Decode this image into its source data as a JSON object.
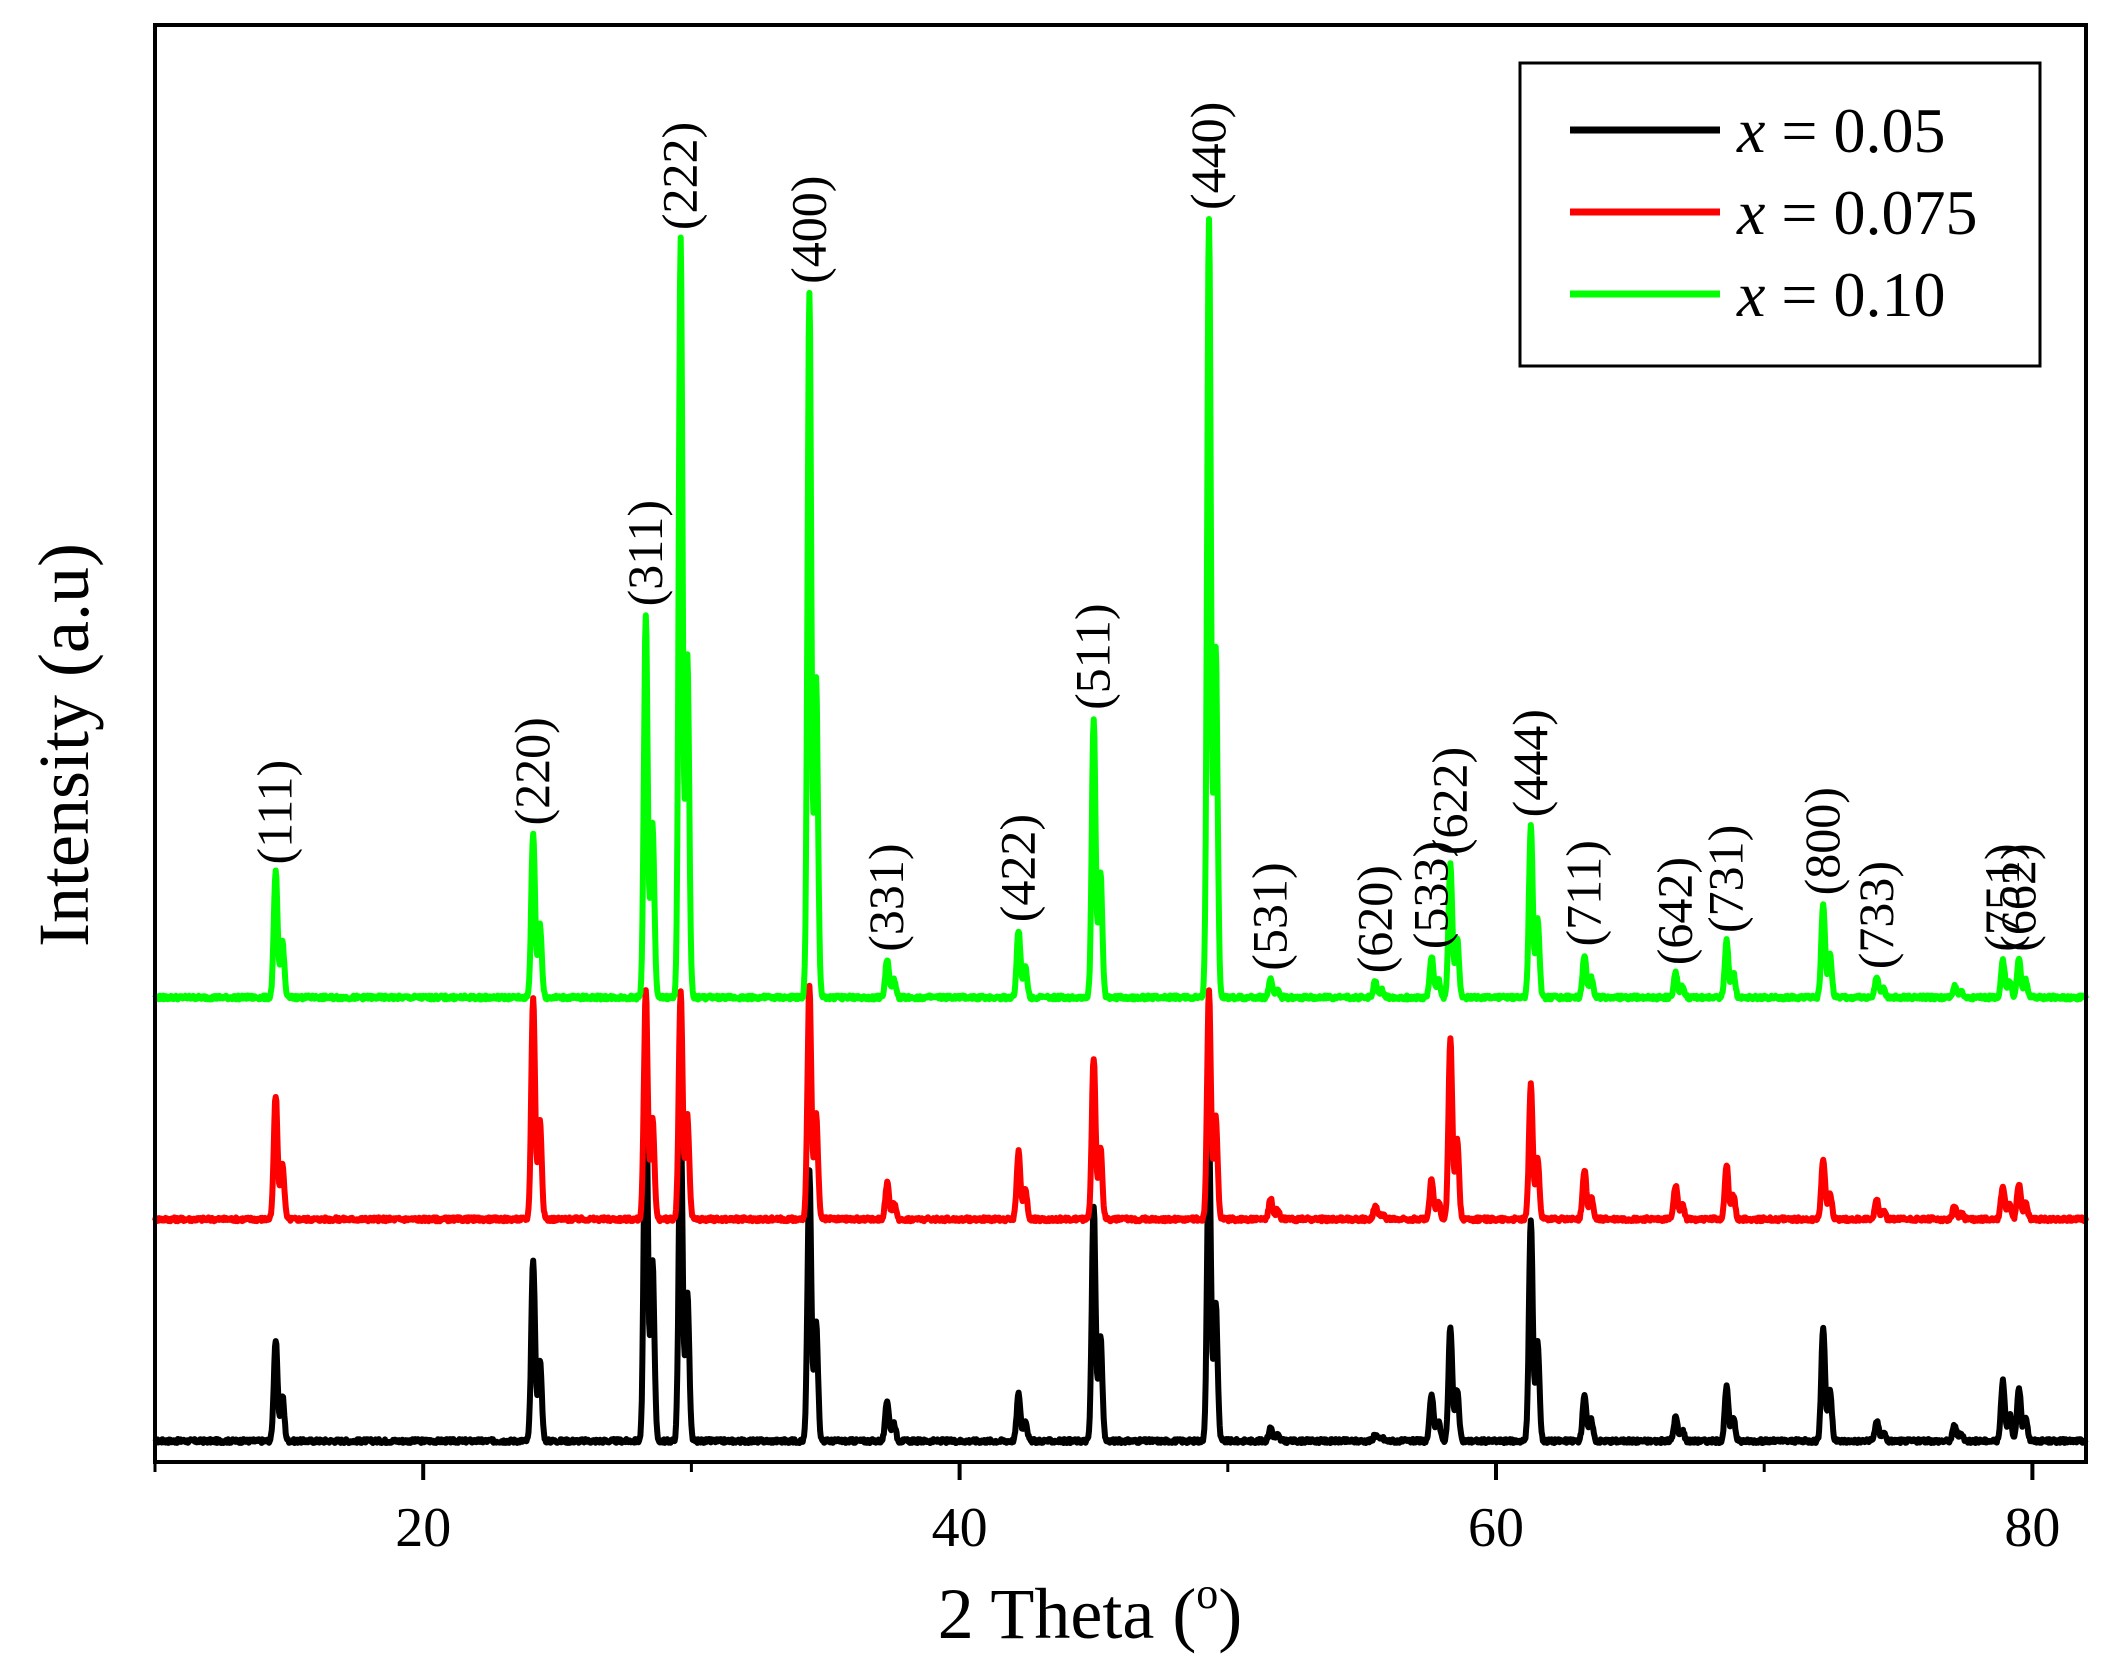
{
  "chart_data": {
    "type": "line",
    "title": "",
    "xlabel": "2 Theta (",
    "xlabel_sup": "o",
    "xlabel_close": ")",
    "ylabel": "Intensity (a.u)",
    "xlim": [
      10,
      82
    ],
    "xticks": [
      20,
      40,
      60,
      80
    ],
    "xtick_labels": [
      "20",
      "40",
      "60",
      "80"
    ],
    "y_ticks_shown": false,
    "legend_position": "top-right",
    "series": [
      {
        "name": "x = 0.05",
        "var": "x",
        "rest": " = 0.05",
        "color": "#000000",
        "baseline": 0,
        "peaks": [
          [
            14.5,
            75
          ],
          [
            24.1,
            135
          ],
          [
            28.3,
            300
          ],
          [
            29.6,
            245
          ],
          [
            34.4,
            200
          ],
          [
            37.3,
            30
          ],
          [
            42.2,
            35
          ],
          [
            45.0,
            175
          ],
          [
            49.3,
            230
          ],
          [
            51.6,
            10
          ],
          [
            55.5,
            5
          ],
          [
            57.6,
            35
          ],
          [
            58.3,
            85
          ],
          [
            61.3,
            165
          ],
          [
            63.3,
            35
          ],
          [
            66.7,
            18
          ],
          [
            68.6,
            40
          ],
          [
            72.2,
            85
          ],
          [
            74.2,
            15
          ],
          [
            77.1,
            12
          ],
          [
            78.9,
            45
          ],
          [
            79.5,
            40
          ]
        ]
      },
      {
        "name": "x = 0.075",
        "var": "x",
        "rest": " = 0.075",
        "color": "#ff0000",
        "baseline": 165,
        "peaks": [
          [
            14.5,
            92
          ],
          [
            24.1,
            165
          ],
          [
            28.3,
            170
          ],
          [
            29.6,
            170
          ],
          [
            34.4,
            175
          ],
          [
            37.3,
            27
          ],
          [
            42.2,
            50
          ],
          [
            45.0,
            120
          ],
          [
            49.3,
            170
          ],
          [
            51.6,
            15
          ],
          [
            55.5,
            10
          ],
          [
            57.6,
            30
          ],
          [
            58.3,
            135
          ],
          [
            61.3,
            100
          ],
          [
            63.3,
            37
          ],
          [
            66.7,
            25
          ],
          [
            68.6,
            40
          ],
          [
            72.2,
            45
          ],
          [
            74.2,
            15
          ],
          [
            77.1,
            10
          ],
          [
            78.9,
            25
          ],
          [
            79.5,
            27
          ]
        ]
      },
      {
        "name": "x = 0.10",
        "var": "x",
        "rest": " = 0.10",
        "color": "#00ff00",
        "baseline": 330,
        "peaks": [
          [
            14.5,
            93
          ],
          [
            24.1,
            122
          ],
          [
            28.3,
            285
          ],
          [
            29.6,
            565
          ],
          [
            34.4,
            525
          ],
          [
            37.3,
            28
          ],
          [
            42.2,
            50
          ],
          [
            45.0,
            208
          ],
          [
            49.3,
            580
          ],
          [
            51.6,
            14
          ],
          [
            55.5,
            12
          ],
          [
            57.6,
            30
          ],
          [
            58.3,
            100
          ],
          [
            61.3,
            128
          ],
          [
            63.3,
            32
          ],
          [
            66.7,
            18
          ],
          [
            68.6,
            42
          ],
          [
            72.2,
            70
          ],
          [
            74.2,
            15
          ],
          [
            77.1,
            8
          ],
          [
            78.9,
            28
          ],
          [
            79.5,
            28
          ]
        ]
      }
    ],
    "annotations": [
      {
        "label": "(111)",
        "x": 14.5,
        "y": 423
      },
      {
        "label": "(220)",
        "x": 24.1,
        "y": 452
      },
      {
        "label": "(311)",
        "x": 28.3,
        "y": 615
      },
      {
        "label": "(222)",
        "x": 29.6,
        "y": 895
      },
      {
        "label": "(400)",
        "x": 34.4,
        "y": 855
      },
      {
        "label": "(331)",
        "x": 37.3,
        "y": 358
      },
      {
        "label": "(422)",
        "x": 42.2,
        "y": 380
      },
      {
        "label": "(511)",
        "x": 45.0,
        "y": 538
      },
      {
        "label": "(440)",
        "x": 49.3,
        "y": 910
      },
      {
        "label": "(531)",
        "x": 51.6,
        "y": 344
      },
      {
        "label": "(620)",
        "x": 55.5,
        "y": 342
      },
      {
        "label": "(533)",
        "x": 57.6,
        "y": 360
      },
      {
        "label": "(622)",
        "x": 58.3,
        "y": 430
      },
      {
        "label": "(444)",
        "x": 61.3,
        "y": 458
      },
      {
        "label": "(711)",
        "x": 63.3,
        "y": 362
      },
      {
        "label": "(642)",
        "x": 66.7,
        "y": 348
      },
      {
        "label": "(731)",
        "x": 68.6,
        "y": 372
      },
      {
        "label": "(800)",
        "x": 72.2,
        "y": 400
      },
      {
        "label": "(733)",
        "x": 74.2,
        "y": 345
      },
      {
        "label": "(751)",
        "x": 78.9,
        "y": 358
      },
      {
        "label": "(662)",
        "x": 79.5,
        "y": 358
      }
    ]
  }
}
